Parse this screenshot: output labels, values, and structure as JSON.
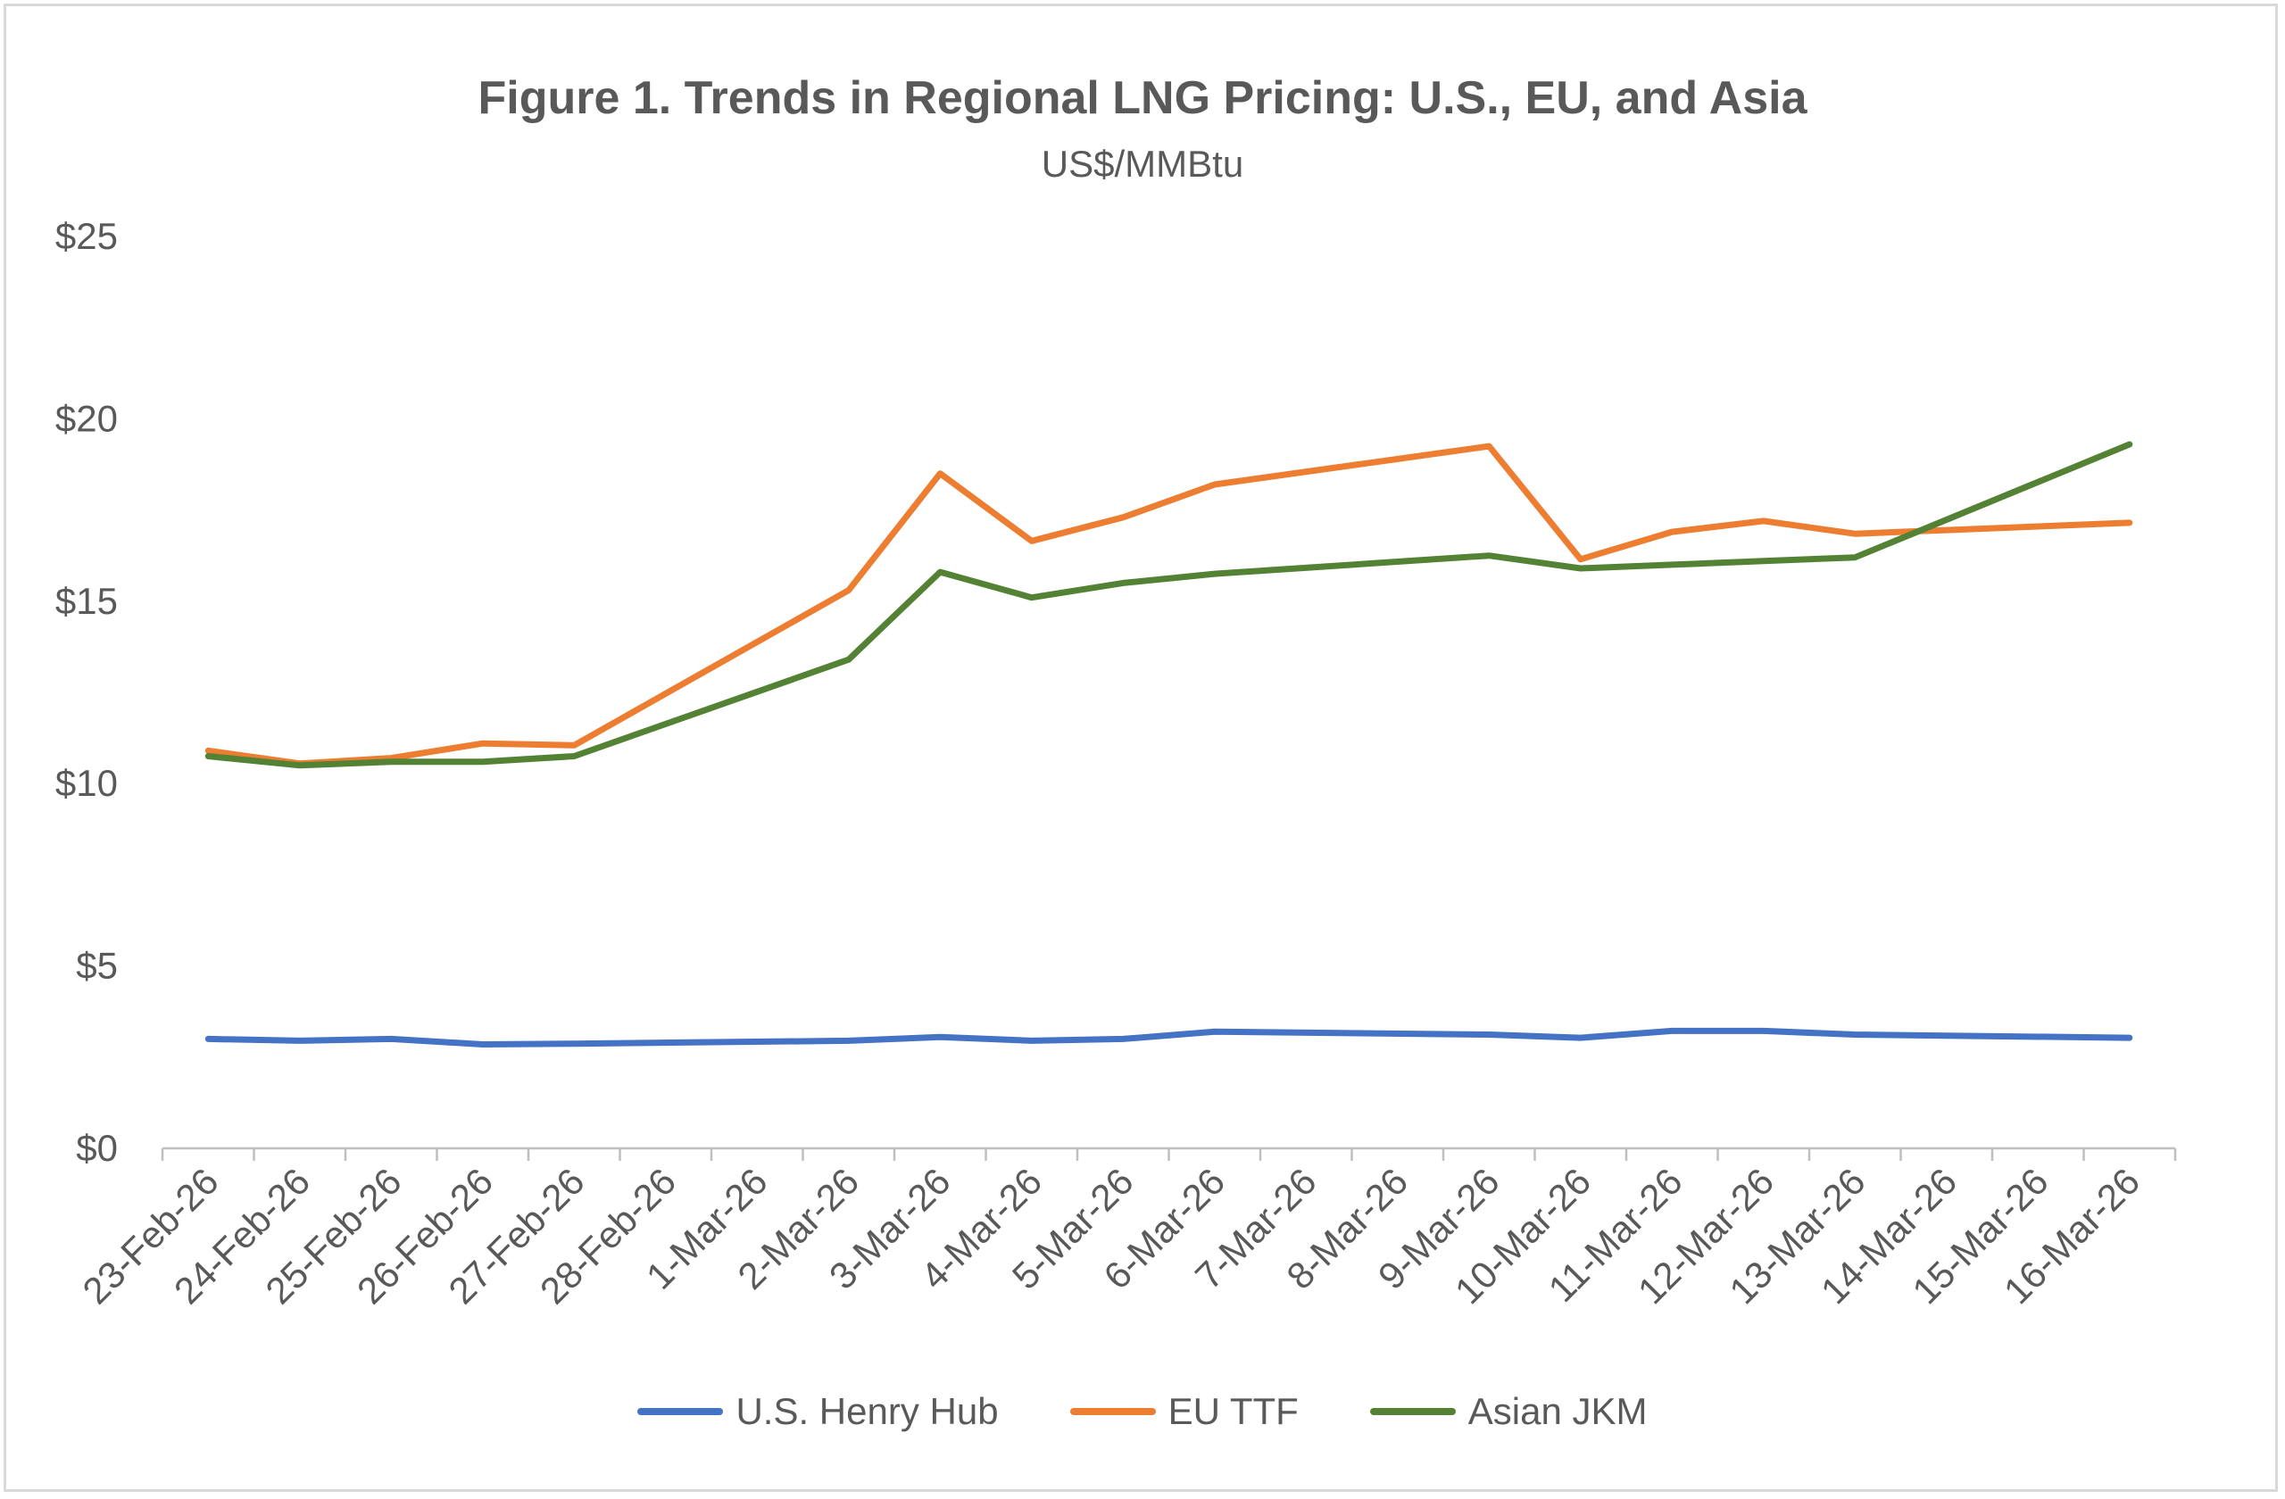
{
  "chart_data": {
    "type": "line",
    "title": "Figure 1. Trends in Regional LNG Pricing: U.S., EU, and Asia",
    "subtitle": "US$/MMBtu",
    "xlabel": "",
    "ylabel": "",
    "ylim": [
      0,
      25
    ],
    "yticks": [
      0,
      5,
      10,
      15,
      20,
      25
    ],
    "ytick_labels": [
      "$0",
      "$5",
      "$10",
      "$15",
      "$20",
      "$25"
    ],
    "categories": [
      "23-Feb-26",
      "24-Feb-26",
      "25-Feb-26",
      "26-Feb-26",
      "27-Feb-26",
      "28-Feb-26",
      "1-Mar-26",
      "2-Mar-26",
      "3-Mar-26",
      "4-Mar-26",
      "5-Mar-26",
      "6-Mar-26",
      "7-Mar-26",
      "8-Mar-26",
      "9-Mar-26",
      "10-Mar-26",
      "11-Mar-26",
      "12-Mar-26",
      "13-Mar-26",
      "14-Mar-26",
      "15-Mar-26",
      "16-Mar-26"
    ],
    "grid": false,
    "legend_position": "bottom",
    "series": [
      {
        "name": "U.S. Henry Hub",
        "color": "#4472C4",
        "values": [
          3.0,
          2.95,
          3.0,
          2.85,
          2.87,
          null,
          null,
          2.95,
          3.05,
          2.95,
          3.0,
          3.2,
          null,
          null,
          3.12,
          3.03,
          3.22,
          3.22,
          3.12,
          null,
          null,
          3.03
        ]
      },
      {
        "name": "EU TTF",
        "color": "#ED7D31",
        "values": [
          10.9,
          10.55,
          10.7,
          11.1,
          11.05,
          null,
          null,
          15.3,
          18.5,
          16.65,
          17.3,
          18.2,
          null,
          null,
          19.25,
          16.15,
          16.9,
          17.2,
          16.85,
          null,
          null,
          17.15
        ]
      },
      {
        "name": "Asian JKM",
        "color": "#548235",
        "values": [
          10.75,
          10.5,
          10.6,
          10.6,
          10.75,
          null,
          null,
          13.4,
          15.8,
          15.1,
          15.5,
          15.75,
          null,
          null,
          16.25,
          15.9,
          16.0,
          16.1,
          16.2,
          null,
          null,
          19.3
        ]
      }
    ]
  }
}
